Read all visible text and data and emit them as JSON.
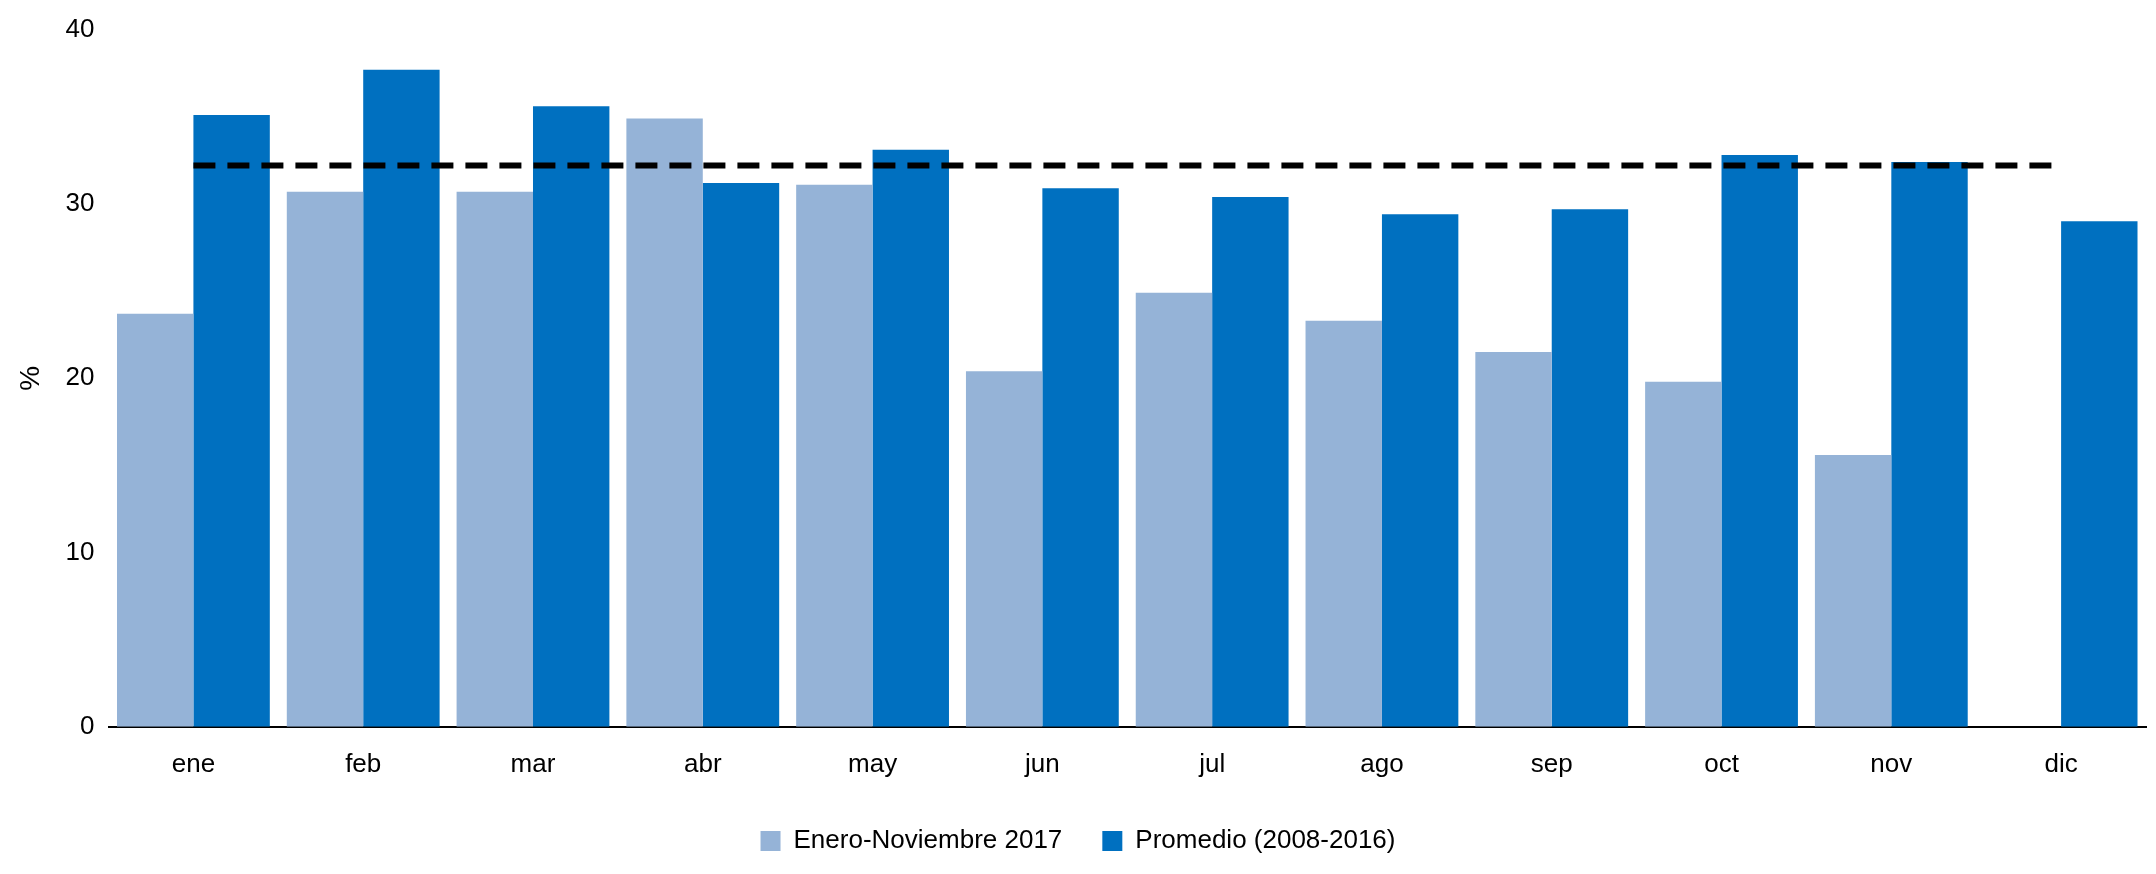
{
  "chart_data": {
    "type": "bar",
    "ylabel": "%",
    "categories": [
      "ene",
      "feb",
      "mar",
      "abr",
      "may",
      "jun",
      "jul",
      "ago",
      "sep",
      "oct",
      "nov",
      "dic"
    ],
    "series": [
      {
        "name": "Enero-Noviembre 2017",
        "color": "#95b3d7",
        "values": [
          23.7,
          30.7,
          30.7,
          34.9,
          31.1,
          20.4,
          24.9,
          23.3,
          21.5,
          19.8,
          15.6,
          null
        ]
      },
      {
        "name": "Promedio (2008-2016)",
        "color": "#0070c0",
        "values": [
          35.1,
          37.7,
          35.6,
          31.2,
          33.1,
          30.9,
          30.4,
          29.4,
          29.7,
          32.8,
          32.4,
          29.0
        ]
      }
    ],
    "ylim": [
      0,
      40
    ],
    "yticks": [
      0,
      10,
      20,
      30,
      40
    ],
    "ref_lines": [
      {
        "axis": "y",
        "value": 32.2,
        "color": "#000000",
        "line_style": "dashed"
      }
    ],
    "grid": false,
    "legend": "bottom"
  }
}
